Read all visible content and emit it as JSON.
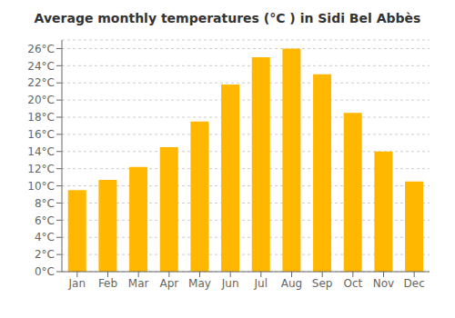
{
  "chart_data": {
    "type": "bar",
    "title": "Average monthly temperatures (°C ) in Sidi Bel Abbès",
    "categories": [
      "Jan",
      "Feb",
      "Mar",
      "Apr",
      "May",
      "Jun",
      "Jul",
      "Aug",
      "Sep",
      "Oct",
      "Nov",
      "Dec"
    ],
    "values": [
      9.5,
      10.7,
      12.2,
      14.5,
      17.5,
      21.8,
      25.0,
      26.0,
      23.0,
      18.5,
      14.0,
      10.5
    ],
    "color": "#FFB700",
    "ylim": [
      0,
      27
    ],
    "yticks": [
      {
        "value": 0,
        "label": "0°C"
      },
      {
        "value": 2,
        "label": "2°C"
      },
      {
        "value": 4,
        "label": "4°C"
      },
      {
        "value": 6,
        "label": "6°C"
      },
      {
        "value": 8,
        "label": "8°C"
      },
      {
        "value": 10,
        "label": "10°C"
      },
      {
        "value": 12,
        "label": "12°C"
      },
      {
        "value": 14,
        "label": "14°C"
      },
      {
        "value": 16,
        "label": "16°C"
      },
      {
        "value": 18,
        "label": "18°C"
      },
      {
        "value": 20,
        "label": "20°C"
      },
      {
        "value": 22,
        "label": "22°C"
      },
      {
        "value": 24,
        "label": "24°C"
      },
      {
        "value": 26,
        "label": "26°C"
      }
    ],
    "grid": true
  }
}
